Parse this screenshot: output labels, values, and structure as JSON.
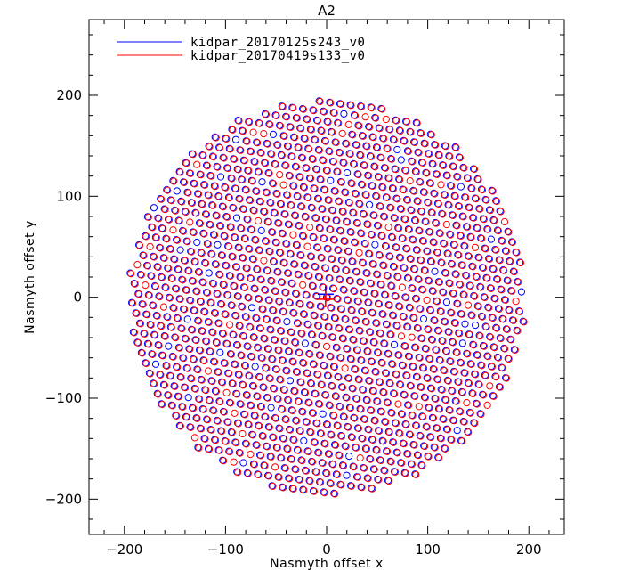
{
  "chart_data": {
    "type": "scatter",
    "title": "A2",
    "xlabel": "Nasmyth offset x",
    "ylabel": "Nasmyth offset y",
    "xlim": [
      -235,
      235
    ],
    "ylim": [
      -235,
      275
    ],
    "xticks": [
      -200,
      -100,
      0,
      100,
      200
    ],
    "yticks": [
      -200,
      -100,
      0,
      100,
      200
    ],
    "xtick_labels": [
      "−200",
      "−100",
      "0",
      "100",
      "200"
    ],
    "ytick_labels": [
      "−200",
      "−100",
      "0",
      "100",
      "200"
    ],
    "grid": false,
    "legend_position": "top-left",
    "marker": "open-circle",
    "array_radius": 200,
    "array_center": [
      0,
      0
    ],
    "series": [
      {
        "name": "kidpar_20170125s243_v0",
        "color": "#0000ff",
        "center_marker": [
          -1,
          3
        ],
        "offset": [
          0,
          0
        ],
        "note_points": "regular grid ~10.3 arcsec pitch inside radius 200; some detectors differ from red series"
      },
      {
        "name": "kidpar_20170419s133_v0",
        "color": "#ff0000",
        "center_marker": [
          -1,
          -2
        ],
        "offset": [
          0.8,
          -0.5
        ],
        "note_points": "same grid, slightly shifted"
      }
    ]
  }
}
